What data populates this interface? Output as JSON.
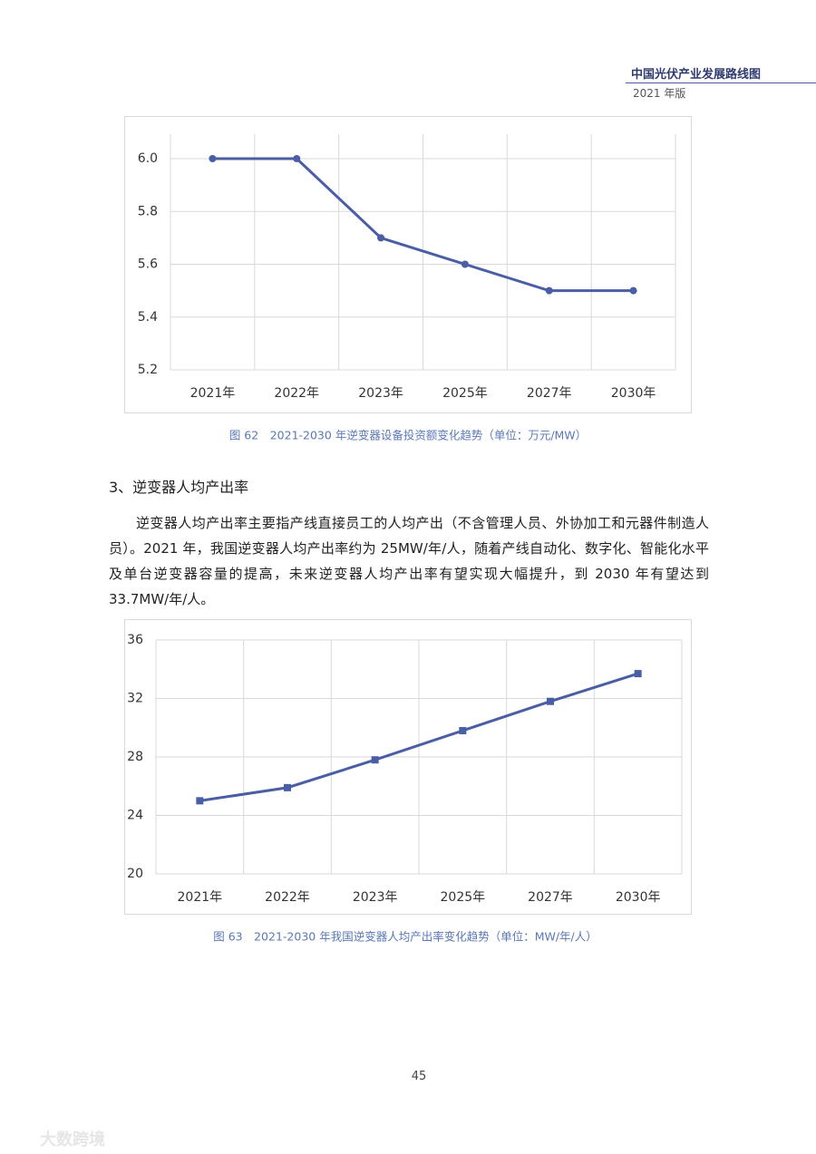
{
  "header": {
    "title": "中国光伏产业发展路线图",
    "edition": "2021 年版"
  },
  "chart_data": [
    {
      "type": "line",
      "marker": "circle",
      "color": "#4a5ea6",
      "grid": true,
      "categories": [
        "2021年",
        "2022年",
        "2023年",
        "2025年",
        "2027年",
        "2030年"
      ],
      "values": [
        6.0,
        6.0,
        5.7,
        5.6,
        5.5,
        5.5
      ],
      "ylim": [
        5.2,
        6.0
      ],
      "yticks": [
        5.2,
        5.4,
        5.6,
        5.8,
        {
          "value": 6,
          "label": "6.0"
        }
      ],
      "caption": "图 62　2021-2030 年逆变器设备投资额变化趋势（单位：万元/MW）"
    },
    {
      "type": "line",
      "marker": "square",
      "color": "#4a5ea6",
      "grid": true,
      "categories": [
        "2021年",
        "2022年",
        "2023年",
        "2025年",
        "2027年",
        "2030年"
      ],
      "values": [
        25,
        25.9,
        27.8,
        29.8,
        31.8,
        33.7
      ],
      "ylim": [
        20,
        36
      ],
      "yticks": [
        20,
        24,
        28,
        32,
        36
      ],
      "caption": "图 63　2021-2030 年我国逆变器人均产出率变化趋势（单位：MW/年/人）"
    }
  ],
  "section": {
    "heading": "3、逆变器人均产出率",
    "paragraph": "逆变器人均产出率主要指产线直接员工的人均产出（不含管理人员、外协加工和元器件制造人员）。2021 年，我国逆变器人均产出率约为 25MW/年/人，随着产线自动化、数字化、智能化水平及单台逆变器容量的提高，未来逆变器人均产出率有望实现大幅提升，到 2030 年有望达到 33.7MW/年/人。"
  },
  "page_number": "45",
  "watermark": "大数跨境"
}
